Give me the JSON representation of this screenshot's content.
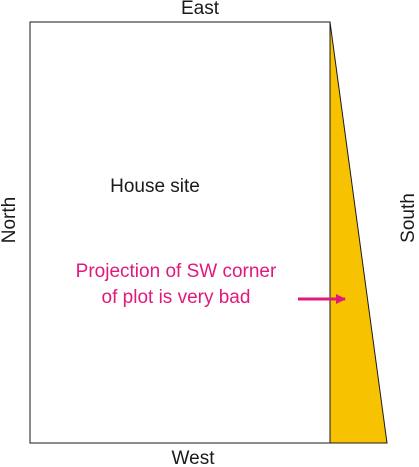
{
  "labels": {
    "top": "East",
    "bottom": "West",
    "left": "North",
    "right": "South"
  },
  "house": "House site",
  "annotation": [
    "Projection of SW corner",
    "of plot is very bad"
  ]
}
